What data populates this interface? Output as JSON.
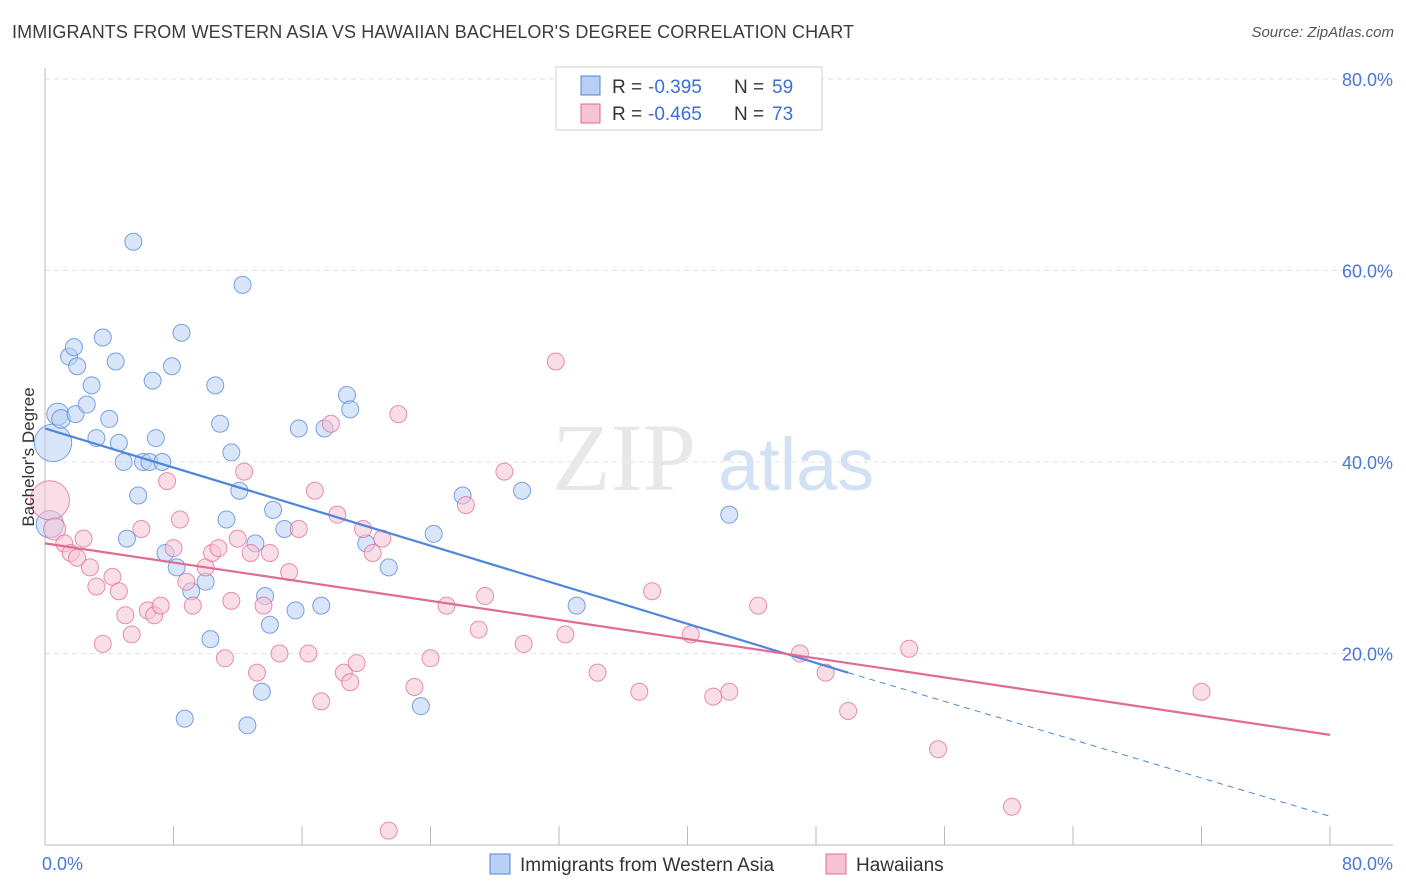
{
  "chart_data": {
    "type": "scatter",
    "title": "IMMIGRANTS FROM WESTERN ASIA VS HAWAIIAN BACHELOR'S DEGREE CORRELATION CHART",
    "source": "Source: ZipAtlas.com",
    "xlabel": "",
    "ylabel": "Bachelor's Degree",
    "xlim": [
      0,
      80
    ],
    "ylim": [
      0,
      80
    ],
    "x_tick_labels": [
      "0.0%",
      "80.0%"
    ],
    "y_ticks": [
      20,
      40,
      60,
      80
    ],
    "y_tick_labels": [
      "20.0%",
      "40.0%",
      "60.0%",
      "80.0%"
    ],
    "watermark": {
      "zip": "ZIP",
      "atlas": "atlas"
    },
    "colors": {
      "blue": "#4f86db",
      "blue_fill": "#b9cff3",
      "pink": "#e06b94",
      "pink_fill": "#f6c3d3",
      "grid": "#e3e3e3"
    },
    "legend": [
      {
        "r_label": "R = ",
        "r_value": "-0.395",
        "n_label": "N = ",
        "n_value": "59"
      },
      {
        "r_label": "R = ",
        "r_value": "-0.465",
        "n_label": "N = ",
        "n_value": "73"
      }
    ],
    "series": [
      {
        "name": "Immigrants from Western Asia",
        "color": "#4f86db",
        "trend": {
          "x0": 0,
          "y0": 43.5,
          "x1": 50,
          "y1": 18,
          "dash_x1": 80,
          "dash_y1": 3
        },
        "points": [
          [
            0.5,
            42,
            2.2
          ],
          [
            0.3,
            33.5,
            1.6
          ],
          [
            0.8,
            45,
            1.3
          ],
          [
            1.0,
            44.5,
            1.1
          ],
          [
            1.5,
            51,
            1
          ],
          [
            1.8,
            52,
            1
          ],
          [
            2.0,
            50,
            1
          ],
          [
            1.9,
            45,
            1
          ],
          [
            2.6,
            46,
            1
          ],
          [
            2.9,
            48,
            1
          ],
          [
            3.2,
            42.5,
            1
          ],
          [
            3.6,
            53,
            1
          ],
          [
            4.0,
            44.5,
            1
          ],
          [
            4.4,
            50.5,
            1
          ],
          [
            4.6,
            42,
            1
          ],
          [
            4.9,
            40,
            1
          ],
          [
            5.1,
            32,
            1
          ],
          [
            5.5,
            63,
            1
          ],
          [
            5.8,
            36.5,
            1
          ],
          [
            6.1,
            40,
            1
          ],
          [
            6.5,
            40,
            1
          ],
          [
            6.7,
            48.5,
            1
          ],
          [
            6.9,
            42.5,
            1
          ],
          [
            7.3,
            40,
            1
          ],
          [
            7.5,
            30.5,
            1
          ],
          [
            7.9,
            50,
            1
          ],
          [
            8.2,
            29,
            1
          ],
          [
            8.5,
            53.5,
            1
          ],
          [
            9.1,
            26.5,
            1
          ],
          [
            10.0,
            27.5,
            1
          ],
          [
            10.3,
            21.5,
            1
          ],
          [
            10.6,
            48,
            1
          ],
          [
            10.9,
            44,
            1
          ],
          [
            11.3,
            34,
            1
          ],
          [
            11.6,
            41,
            1
          ],
          [
            12.1,
            37,
            1
          ],
          [
            12.3,
            58.5,
            1
          ],
          [
            12.6,
            12.5,
            1
          ],
          [
            13.1,
            31.5,
            1
          ],
          [
            13.5,
            16,
            1
          ],
          [
            13.7,
            26,
            1
          ],
          [
            14.0,
            23,
            1
          ],
          [
            14.2,
            35,
            1
          ],
          [
            14.9,
            33,
            1
          ],
          [
            15.6,
            24.5,
            1
          ],
          [
            15.8,
            43.5,
            1
          ],
          [
            17.2,
            25,
            1
          ],
          [
            17.4,
            43.5,
            1
          ],
          [
            18.8,
            47,
            1
          ],
          [
            19.0,
            45.5,
            1
          ],
          [
            20.0,
            31.5,
            1
          ],
          [
            21.4,
            29,
            1
          ],
          [
            23.4,
            14.5,
            1
          ],
          [
            24.2,
            32.5,
            1
          ],
          [
            26.0,
            36.5,
            1
          ],
          [
            29.7,
            37,
            1
          ],
          [
            33.1,
            25,
            1
          ],
          [
            42.6,
            34.5,
            1
          ],
          [
            8.7,
            13.2,
            1
          ]
        ]
      },
      {
        "name": "Hawaiians",
        "color": "#e06b94",
        "trend": {
          "x0": 0,
          "y0": 31.5,
          "x1": 80,
          "y1": 11.5
        },
        "points": [
          [
            0.3,
            36,
            2.3
          ],
          [
            0.6,
            33,
            1.3
          ],
          [
            1.2,
            31.5,
            1
          ],
          [
            1.6,
            30.5,
            1
          ],
          [
            2.0,
            30,
            1
          ],
          [
            2.4,
            32,
            1
          ],
          [
            2.8,
            29,
            1
          ],
          [
            3.2,
            27,
            1
          ],
          [
            3.6,
            21,
            1
          ],
          [
            4.2,
            28,
            1
          ],
          [
            4.6,
            26.5,
            1
          ],
          [
            5.0,
            24,
            1
          ],
          [
            5.4,
            22,
            1
          ],
          [
            6.0,
            33,
            1
          ],
          [
            6.4,
            24.5,
            1
          ],
          [
            6.8,
            24,
            1
          ],
          [
            7.2,
            25,
            1
          ],
          [
            7.6,
            38,
            1
          ],
          [
            8.0,
            31,
            1
          ],
          [
            8.4,
            34,
            1
          ],
          [
            8.8,
            27.5,
            1
          ],
          [
            9.2,
            25,
            1
          ],
          [
            10.0,
            29,
            1
          ],
          [
            10.4,
            30.5,
            1
          ],
          [
            10.8,
            31,
            1
          ],
          [
            11.2,
            19.5,
            1
          ],
          [
            11.6,
            25.5,
            1
          ],
          [
            12.0,
            32,
            1
          ],
          [
            12.4,
            39,
            1
          ],
          [
            12.8,
            30.5,
            1
          ],
          [
            13.2,
            18,
            1
          ],
          [
            13.6,
            25,
            1
          ],
          [
            14.0,
            30.5,
            1
          ],
          [
            14.6,
            20,
            1
          ],
          [
            15.2,
            28.5,
            1
          ],
          [
            15.8,
            33,
            1
          ],
          [
            16.4,
            20,
            1
          ],
          [
            16.8,
            37,
            1
          ],
          [
            17.2,
            15,
            1
          ],
          [
            17.8,
            44,
            1
          ],
          [
            18.2,
            34.5,
            1
          ],
          [
            18.6,
            18,
            1
          ],
          [
            19.0,
            17,
            1
          ],
          [
            19.4,
            19,
            1
          ],
          [
            19.8,
            33,
            1
          ],
          [
            20.4,
            30.5,
            1
          ],
          [
            21.0,
            32,
            1
          ],
          [
            21.4,
            1.5,
            1
          ],
          [
            22.0,
            45,
            1
          ],
          [
            23.0,
            16.5,
            1
          ],
          [
            24.0,
            19.5,
            1
          ],
          [
            25.0,
            25,
            1
          ],
          [
            26.2,
            35.5,
            1
          ],
          [
            27.0,
            22.5,
            1
          ],
          [
            27.4,
            26,
            1
          ],
          [
            28.6,
            39,
            1
          ],
          [
            29.8,
            21,
            1
          ],
          [
            31.8,
            50.5,
            1
          ],
          [
            32.4,
            22,
            1
          ],
          [
            34.4,
            18,
            1
          ],
          [
            37.0,
            16,
            1
          ],
          [
            37.8,
            26.5,
            1
          ],
          [
            40.2,
            22,
            1
          ],
          [
            41.6,
            15.5,
            1
          ],
          [
            42.6,
            16,
            1
          ],
          [
            44.4,
            25,
            1
          ],
          [
            47.0,
            20,
            1
          ],
          [
            48.6,
            18,
            1
          ],
          [
            50.0,
            14,
            1
          ],
          [
            53.8,
            20.5,
            1
          ],
          [
            55.6,
            10,
            1
          ],
          [
            60.2,
            4,
            1
          ],
          [
            72.0,
            16,
            1
          ]
        ]
      }
    ]
  }
}
